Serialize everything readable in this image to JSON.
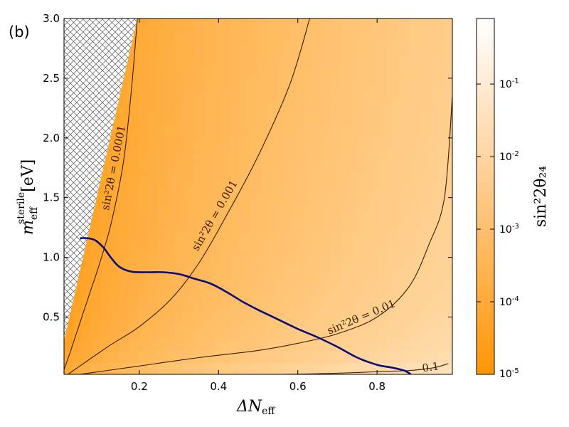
{
  "panel_label": "(b)",
  "chart_data": {
    "type": "heatmap",
    "xlabel": "ΔN",
    "xlabel_sub": "eff",
    "ylabel": "m",
    "ylabel_sub": "eff",
    "ylabel_sup": "sterile",
    "ylabel_unit": "[eV]",
    "xlim": [
      0.01,
      0.99
    ],
    "ylim": [
      0.02,
      3.0
    ],
    "xticks": [
      {
        "value": 0.2,
        "label": "0.2"
      },
      {
        "value": 0.4,
        "label": "0.4"
      },
      {
        "value": 0.6,
        "label": "0.6"
      },
      {
        "value": 0.8,
        "label": "0.8"
      }
    ],
    "yticks": [
      {
        "value": 0.5,
        "label": "0.5"
      },
      {
        "value": 1.0,
        "label": "1.0"
      },
      {
        "value": 1.5,
        "label": "1.5"
      },
      {
        "value": 2.0,
        "label": "2.0"
      },
      {
        "value": 2.5,
        "label": "2.5"
      },
      {
        "value": 3.0,
        "label": "3.0"
      }
    ],
    "colorbar": {
      "label": "sin²2θ₂₄",
      "scale": "log",
      "range": [
        1e-05,
        0.8
      ],
      "ticks": [
        {
          "value": 1e-05,
          "base": "10",
          "exp": "-5"
        },
        {
          "value": 0.0001,
          "base": "10",
          "exp": "-4"
        },
        {
          "value": 0.001,
          "base": "10",
          "exp": "-3"
        },
        {
          "value": 0.01,
          "base": "10",
          "exp": "-2"
        },
        {
          "value": 0.1,
          "base": "10",
          "exp": "-1"
        }
      ],
      "colors": [
        "#ff9505",
        "#ffffff"
      ]
    },
    "excluded_region": {
      "pattern": "crosshatch",
      "boundary": [
        [
          0.01,
          0.3
        ],
        [
          0.195,
          3.0
        ]
      ]
    },
    "contours": [
      {
        "label": "sin²2θ = 0.0001",
        "x": [
          0.01,
          0.025,
          0.05,
          0.075,
          0.1,
          0.13,
          0.16,
          0.18,
          0.195
        ],
        "y": [
          0.06,
          0.2,
          0.45,
          0.7,
          0.95,
          1.3,
          1.8,
          2.4,
          3.0
        ],
        "label_at": [
          0.135,
          1.75
        ]
      },
      {
        "label": "sin²2θ = 0.001",
        "x": [
          0.02,
          0.12,
          0.2,
          0.28,
          0.35,
          0.42,
          0.5,
          0.58,
          0.63
        ],
        "y": [
          0.02,
          0.25,
          0.42,
          0.65,
          0.95,
          1.35,
          1.85,
          2.45,
          3.0
        ],
        "label_at": [
          0.39,
          1.35
        ]
      },
      {
        "label": "sin²2θ = 0.01",
        "x": [
          0.05,
          0.2,
          0.35,
          0.5,
          0.6,
          0.7,
          0.8,
          0.88,
          0.93,
          0.97,
          0.99
        ],
        "y": [
          0.02,
          0.09,
          0.16,
          0.22,
          0.28,
          0.36,
          0.5,
          0.75,
          1.1,
          1.5,
          2.35
        ],
        "label_at": [
          0.76,
          0.5
        ]
      },
      {
        "label": "0.1",
        "x": [
          0.56,
          0.65,
          0.75,
          0.82,
          0.87,
          0.91,
          0.95,
          0.98
        ],
        "y": [
          0.02,
          0.025,
          0.035,
          0.045,
          0.05,
          0.06,
          0.08,
          0.11
        ],
        "label_at": [
          0.935,
          0.08
        ]
      }
    ],
    "constraint_curve": {
      "color": "#0a0a78",
      "x": [
        0.05,
        0.07,
        0.09,
        0.11,
        0.13,
        0.15,
        0.18,
        0.22,
        0.26,
        0.3,
        0.34,
        0.38,
        0.42,
        0.46,
        0.5,
        0.55,
        0.6,
        0.65,
        0.7,
        0.75,
        0.8,
        0.84,
        0.87,
        0.885
      ],
      "y": [
        1.16,
        1.16,
        1.14,
        1.08,
        0.99,
        0.92,
        0.88,
        0.875,
        0.875,
        0.86,
        0.82,
        0.78,
        0.71,
        0.63,
        0.56,
        0.48,
        0.4,
        0.33,
        0.25,
        0.16,
        0.1,
        0.075,
        0.05,
        0.02
      ]
    }
  }
}
